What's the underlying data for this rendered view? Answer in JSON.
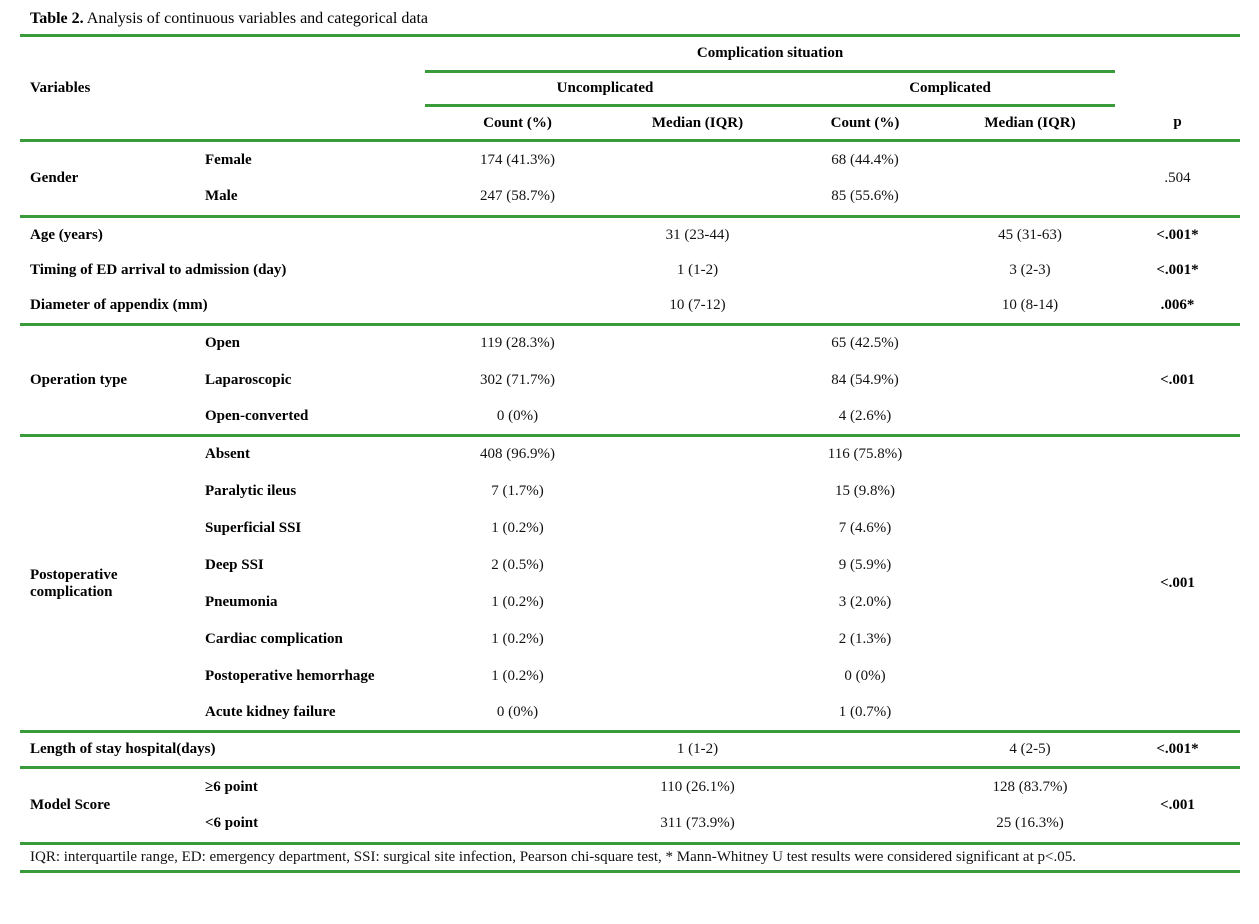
{
  "title": {
    "label": "Table 2.",
    "text": "Analysis of continuous variables and categorical data"
  },
  "colors": {
    "rule_green": "#3a9b3a",
    "text": "#121212"
  },
  "header": {
    "variables": "Variables",
    "group_title": "Complication situation",
    "groups": [
      "Uncomplicated",
      "Complicated"
    ],
    "columns": [
      "Count (%)",
      "Median (IQR)",
      "Count (%)",
      "Median (IQR)"
    ],
    "p": "p"
  },
  "sections": {
    "gender": {
      "label": "Gender",
      "p": ".504",
      "rows": [
        {
          "sub": "Female",
          "uc_count": "174 (41.3%)",
          "c_count": "68 (44.4%)"
        },
        {
          "sub": "Male",
          "uc_count": "247 (58.7%)",
          "c_count": "85 (55.6%)"
        }
      ]
    },
    "continuous": {
      "rows": [
        {
          "label": "Age (years)",
          "uc_median": "31 (23-44)",
          "c_median": "45 (31-63)",
          "p": "<.001*"
        },
        {
          "label": "Timing of ED arrival to admission (day)",
          "uc_median": "1 (1-2)",
          "c_median": "3 (2-3)",
          "p": "<.001*"
        },
        {
          "label": "Diameter of appendix (mm)",
          "uc_median": "10 (7-12)",
          "c_median": "10 (8-14)",
          "p": ".006*"
        }
      ]
    },
    "operation": {
      "label": "Operation type",
      "p": "<.001",
      "rows": [
        {
          "sub": "Open",
          "uc_count": "119 (28.3%)",
          "c_count": "65 (42.5%)"
        },
        {
          "sub": "Laparoscopic",
          "uc_count": "302 (71.7%)",
          "c_count": "84 (54.9%)"
        },
        {
          "sub": "Open-converted",
          "uc_count": "0 (0%)",
          "c_count": "4 (2.6%)"
        }
      ]
    },
    "postop": {
      "label": "Postoperative complication",
      "p": "<.001",
      "rows": [
        {
          "sub": "Absent",
          "uc_count": "408 (96.9%)",
          "c_count": "116 (75.8%)"
        },
        {
          "sub": "Paralytic ileus",
          "uc_count": "7 (1.7%)",
          "c_count": "15 (9.8%)"
        },
        {
          "sub": "Superficial SSI",
          "uc_count": "1 (0.2%)",
          "c_count": "7 (4.6%)"
        },
        {
          "sub": "Deep SSI",
          "uc_count": "2 (0.5%)",
          "c_count": "9 (5.9%)"
        },
        {
          "sub": "Pneumonia",
          "uc_count": "1 (0.2%)",
          "c_count": "3 (2.0%)"
        },
        {
          "sub": "Cardiac complication",
          "uc_count": "1 (0.2%)",
          "c_count": "2 (1.3%)"
        },
        {
          "sub": "Postoperative hemorrhage",
          "uc_count": "1 (0.2%)",
          "c_count": "0 (0%)"
        },
        {
          "sub": "Acute kidney failure",
          "uc_count": "0 (0%)",
          "c_count": "1 (0.7%)"
        }
      ]
    },
    "length_of_stay": {
      "label": "Length of stay hospital(days)",
      "uc_median": "1 (1-2)",
      "c_median": "4 (2-5)",
      "p": "<.001*"
    },
    "model_score": {
      "label": "Model Score",
      "p": "<.001",
      "rows": [
        {
          "sub": "≥6 point",
          "uc_value": "110 (26.1%)",
          "c_value": "128 (83.7%)"
        },
        {
          "sub": "<6 point",
          "uc_value": "311 (73.9%)",
          "c_value": "25 (16.3%)"
        }
      ]
    }
  },
  "footnote": "IQR: interquartile range, ED: emergency department, SSI: surgical site infection, Pearson chi-square test, * Mann-Whitney U test results were considered significant at p<.05."
}
